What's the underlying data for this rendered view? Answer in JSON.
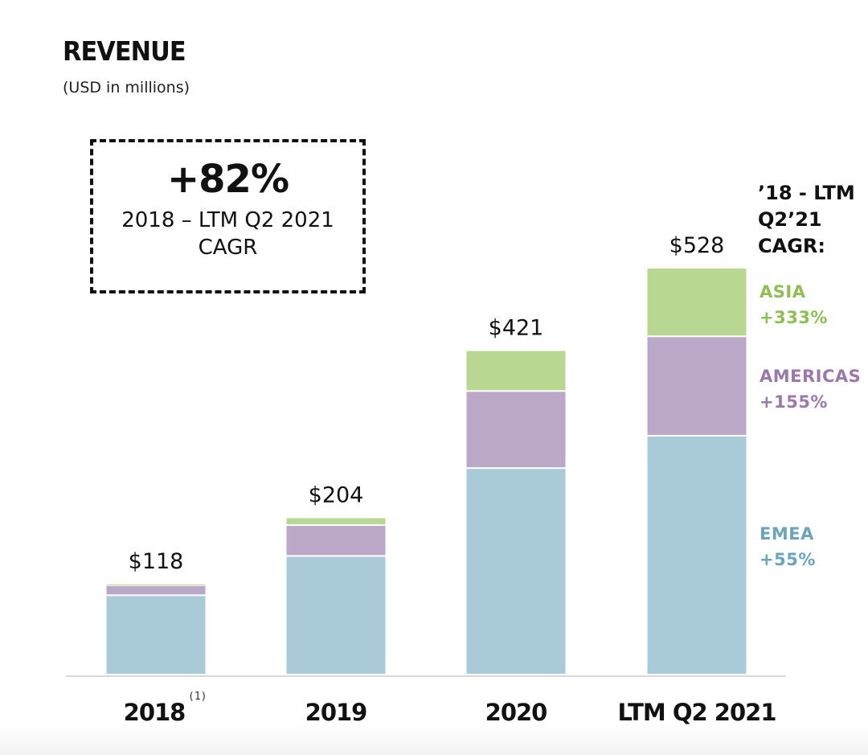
{
  "chart_data": {
    "type": "bar",
    "stacked": true,
    "title": "REVENUE",
    "subtitle": "(USD in millions)",
    "xlabel": "",
    "ylabel": "",
    "ylim": [
      0,
      528
    ],
    "grid": false,
    "categories": [
      "2018",
      "2019",
      "2020",
      "LTM Q2 2021"
    ],
    "category_footnotes": [
      "(1)",
      "",
      "",
      ""
    ],
    "totals": [
      118,
      204,
      421,
      528
    ],
    "total_labels": [
      "$118",
      "$204",
      "$421",
      "$528"
    ],
    "series": [
      {
        "name": "EMEA",
        "color": "#a9cbd9",
        "values": [
          103,
          154,
          268,
          310
        ]
      },
      {
        "name": "AMERICAS",
        "color": "#bba8c8",
        "values": [
          13,
          40,
          100,
          129
        ]
      },
      {
        "name": "ASIA",
        "color": "#b8d891",
        "values": [
          2,
          10,
          53,
          89
        ]
      }
    ],
    "legend_placement": "right",
    "annotations": {
      "cagr_box": {
        "value": "+82%",
        "line1": "2018 – LTM Q2 2021",
        "line2": "CAGR"
      },
      "legend_header": [
        "’18 - LTM",
        "Q2’21",
        "CAGR:"
      ],
      "legend_entries": [
        {
          "name": "ASIA",
          "growth": "+333%",
          "color": "#8cc152"
        },
        {
          "name": "AMERICAS",
          "growth": "+155%",
          "color": "#9b79ad"
        },
        {
          "name": "EMEA",
          "growth": "+55%",
          "color": "#6aa5bd"
        }
      ]
    }
  }
}
